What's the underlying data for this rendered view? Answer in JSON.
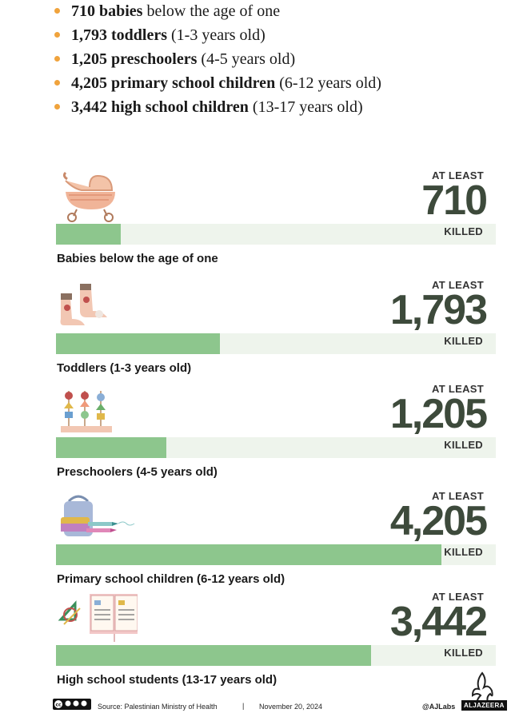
{
  "bullets": [
    {
      "bold": "710 babies",
      "rest": " below the age of one"
    },
    {
      "bold": "1,793 toddlers",
      "rest": " (1-3 years old)"
    },
    {
      "bold": "1,205 preschoolers",
      "rest": " (4-5 years old)"
    },
    {
      "bold": "4,205 primary school children",
      "rest": " (6-12 years old)"
    },
    {
      "bold": "3,442 high school children",
      "rest": " (13-17 years old)"
    }
  ],
  "chart_data": {
    "type": "bar",
    "orientation": "horizontal",
    "prefix": "AT LEAST",
    "suffix": "KILLED",
    "categories": [
      "Babies below the age of one",
      "Toddlers (1-3 years old)",
      "Preschoolers (4-5 years old)",
      "Primary school children (6-12 years old)",
      "High school students (13-17 years old)"
    ],
    "values": [
      710,
      1793,
      1205,
      4205,
      3442
    ],
    "value_labels": [
      "710",
      "1,793",
      "1,205",
      "4,205",
      "3,442"
    ],
    "icons": [
      "baby-carriage-icon",
      "baby-booties-icon",
      "abacus-icon",
      "backpack-crayons-icon",
      "book-geometry-icon"
    ],
    "xlim": [
      0,
      4800
    ],
    "bar_color": "#8dc68d",
    "track_color": "#eef4ec",
    "number_color": "#3d4a3b"
  },
  "footer": {
    "license": "cc by nc sa",
    "source": "Source:  Palestinian Ministry of Health",
    "separator": "|",
    "date": "November 20, 2024",
    "handle": "@AJLabs",
    "brand": "ALJAZEERA"
  }
}
